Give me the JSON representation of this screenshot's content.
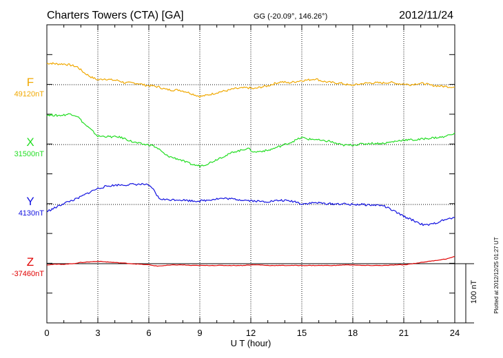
{
  "header": {
    "station": "Charters Towers (CTA)  [GA]",
    "coords": "GG (-20.09°, 146.26°)",
    "date": "2012/11/24"
  },
  "footer": {
    "plotted": "Plotted at 2012/12/25 01:27 UT"
  },
  "chart_data": {
    "type": "line",
    "xlabel": "U T (hour)",
    "xlim": [
      0,
      24
    ],
    "x_ticks": [
      "0",
      "3",
      "6",
      "9",
      "12",
      "15",
      "18",
      "21",
      "24"
    ],
    "scale_bar": {
      "label": "100 nT",
      "value_nT": 100
    },
    "grid": "dotted",
    "series": [
      {
        "name": "F",
        "baseline_label": "49120nT",
        "baseline_nT": 49120,
        "color": "#f0a800",
        "x": [
          0,
          0.3,
          0.6,
          1,
          1.4,
          1.8,
          2.2,
          2.6,
          3,
          3.4,
          3.8,
          4.2,
          4.6,
          5,
          5.4,
          5.8,
          6.2,
          6.6,
          7,
          7.4,
          7.8,
          8.2,
          8.6,
          9,
          9.4,
          9.8,
          10.2,
          10.6,
          11,
          11.4,
          11.8,
          12.2,
          12.6,
          13,
          13.4,
          13.8,
          14.2,
          14.6,
          15,
          15.4,
          15.8,
          16.2,
          16.6,
          17,
          17.4,
          17.8,
          18.2,
          18.6,
          19,
          19.4,
          19.8,
          20.2,
          20.6,
          21,
          21.4,
          21.8,
          22.2,
          22.6,
          23,
          23.4,
          24
        ],
        "y": [
          36,
          36,
          35,
          35,
          33,
          30,
          20,
          13,
          8,
          10,
          8,
          7,
          3,
          3,
          2,
          -1,
          -2,
          -4,
          -8,
          -9,
          -9,
          -12,
          -16,
          -20,
          -18,
          -15,
          -12,
          -10,
          -7,
          -6,
          -5,
          -7,
          -4,
          -2,
          2,
          5,
          3,
          5,
          7,
          8,
          10,
          6,
          4,
          3,
          2,
          -1,
          0,
          2,
          3,
          3,
          3,
          4,
          2,
          1,
          0,
          2,
          2,
          -1,
          -2,
          -3,
          -4
        ]
      },
      {
        "name": "X",
        "baseline_label": "31500nT",
        "baseline_nT": 31500,
        "color": "#22dd22",
        "x": [
          0,
          0.3,
          0.6,
          1,
          1.4,
          1.8,
          2.2,
          2.6,
          3,
          3.4,
          3.8,
          4.2,
          4.6,
          5,
          5.4,
          5.8,
          6.2,
          6.6,
          7,
          7.4,
          7.8,
          8.2,
          8.6,
          9,
          9.4,
          9.8,
          10.2,
          10.6,
          11,
          11.4,
          11.8,
          12.2,
          12.6,
          13,
          13.4,
          13.8,
          14.2,
          14.6,
          15,
          15.4,
          15.8,
          16.2,
          16.6,
          17,
          17.4,
          17.8,
          18.2,
          18.6,
          19,
          19.4,
          19.8,
          20.2,
          20.6,
          21,
          21.4,
          21.8,
          22.2,
          22.6,
          23,
          23.4,
          24
        ],
        "y": [
          50,
          50,
          49,
          50,
          52,
          48,
          35,
          25,
          14,
          14,
          13,
          13,
          10,
          5,
          2,
          0,
          -1,
          -8,
          -18,
          -22,
          -25,
          -30,
          -34,
          -36,
          -33,
          -28,
          -22,
          -18,
          -12,
          -10,
          -6,
          -13,
          -11,
          -10,
          -6,
          -2,
          2,
          7,
          12,
          9,
          9,
          6,
          6,
          2,
          -1,
          -1,
          0,
          1,
          2,
          2,
          2,
          4,
          6,
          8,
          8,
          8,
          10,
          11,
          12,
          13,
          20
        ]
      },
      {
        "name": "Y",
        "baseline_label": "4130nT",
        "baseline_nT": 4130,
        "color": "#1010e0",
        "x": [
          0,
          0.3,
          0.6,
          1,
          1.4,
          1.8,
          2.2,
          2.6,
          3,
          3.4,
          3.8,
          4.2,
          4.6,
          5,
          5.4,
          5.8,
          6.2,
          6.6,
          7,
          7.4,
          7.8,
          8.2,
          8.6,
          9,
          9.4,
          9.8,
          10.2,
          10.6,
          11,
          11.4,
          11.8,
          12.2,
          12.6,
          13,
          13.4,
          13.8,
          14.2,
          14.6,
          15,
          15.4,
          15.8,
          16.2,
          16.6,
          17,
          17.4,
          17.8,
          18.2,
          18.6,
          19,
          19.4,
          19.8,
          20.2,
          20.6,
          21,
          21.4,
          21.8,
          22.2,
          22.6,
          23,
          23.4,
          24
        ],
        "y": [
          -12,
          -8,
          -4,
          2,
          6,
          10,
          16,
          22,
          27,
          30,
          32,
          33,
          33,
          34,
          34,
          34,
          28,
          10,
          8,
          8,
          8,
          7,
          6,
          6,
          7,
          9,
          10,
          10,
          9,
          8,
          7,
          6,
          5,
          5,
          6,
          7,
          6,
          5,
          1,
          2,
          3,
          2,
          1,
          1,
          1,
          0,
          0,
          0,
          -1,
          -1,
          -2,
          -8,
          -14,
          -20,
          -25,
          -30,
          -35,
          -34,
          -30,
          -26,
          -22
        ]
      },
      {
        "name": "Z",
        "baseline_label": "-37460nT",
        "baseline_nT": -37460,
        "color": "#e00000",
        "x": [
          0,
          0.5,
          1,
          1.5,
          2,
          2.5,
          3,
          3.5,
          4,
          4.5,
          5,
          5.5,
          6,
          6.5,
          7,
          7.5,
          8,
          8.5,
          9,
          9.5,
          10,
          10.5,
          11,
          11.5,
          12,
          12.5,
          13,
          13.5,
          14,
          14.5,
          15,
          15.5,
          16,
          16.5,
          17,
          17.5,
          18,
          18.5,
          19,
          19.5,
          20,
          20.5,
          21,
          21.5,
          22,
          22.5,
          23,
          23.5,
          24
        ],
        "y": [
          -2,
          -1,
          -1,
          0,
          2,
          3,
          4,
          3,
          2,
          1,
          0,
          -1,
          -2,
          -4,
          -3,
          -2,
          -2,
          -3,
          -3,
          -3,
          -3,
          -3,
          -3,
          -3,
          -2,
          -2,
          -3,
          -3,
          -3,
          -3,
          -3,
          -3,
          -3,
          -3,
          -3,
          -2,
          -2,
          -3,
          -3,
          -3,
          -3,
          -2,
          -2,
          0,
          2,
          4,
          6,
          8,
          12
        ]
      }
    ]
  }
}
